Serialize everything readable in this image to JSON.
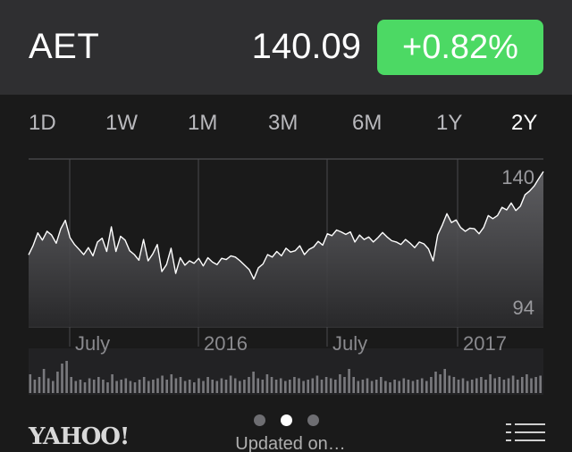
{
  "quote": {
    "symbol": "AET",
    "price": "140.09",
    "change": "+0.82%",
    "change_color": "#4cd964"
  },
  "ranges": {
    "tabs": [
      "1D",
      "1W",
      "1M",
      "3M",
      "6M",
      "1Y",
      "2Y"
    ],
    "selected": "2Y"
  },
  "footer": {
    "brand": "YAHOO!",
    "updated_text": "Updated on…",
    "page_count": 3,
    "active_page": 1,
    "list_icon": "list-icon"
  },
  "chart_data": {
    "type": "area",
    "title": "",
    "xlabel": "",
    "ylabel": "",
    "x_tick_labels": [
      "July",
      "2016",
      "July",
      "2017"
    ],
    "y_tick_labels": [
      "140",
      "94"
    ],
    "ylim": [
      94,
      140
    ],
    "grid": true,
    "series": [
      {
        "values": [
          113.5,
          116.5,
          120.5,
          118.2,
          121.0,
          119.8,
          117.2,
          121.8,
          124.5,
          119.0,
          116.8,
          115.2,
          113.6,
          115.8,
          113.2,
          117.6,
          118.8,
          114.6,
          122.4,
          114.6,
          119.4,
          118.2,
          114.8,
          113.6,
          111.8,
          118.4,
          111.6,
          113.8,
          116.8,
          108.2,
          110.4,
          115.6,
          107.6,
          112.6,
          110.2,
          111.6,
          110.8,
          112.4,
          110.0,
          112.6,
          111.2,
          110.4,
          112.4,
          112.0,
          113.2,
          112.8,
          111.6,
          110.2,
          108.8,
          105.8,
          109.4,
          110.6,
          113.6,
          112.8,
          114.6,
          113.2,
          115.6,
          114.4,
          114.8,
          116.4,
          113.6,
          115.2,
          116.0,
          117.8,
          116.6,
          120.2,
          119.6,
          121.4,
          120.8,
          120.0,
          120.8,
          117.6,
          119.8,
          118.4,
          119.2,
          117.6,
          119.0,
          120.6,
          119.2,
          118.0,
          117.6,
          116.8,
          118.4,
          117.2,
          115.8,
          117.6,
          117.0,
          115.4,
          111.6,
          119.8,
          123.0,
          126.6,
          123.8,
          124.6,
          122.2,
          121.0,
          122.0,
          121.8,
          120.2,
          122.2,
          126.0,
          125.0,
          126.0,
          128.6,
          127.8,
          130.0,
          127.6,
          129.0,
          132.6,
          133.8,
          135.4,
          137.8,
          140.0
        ],
        "color": "#ffffff"
      }
    ],
    "volume": [
      14,
      10,
      12,
      18,
      11,
      9,
      16,
      22,
      24,
      12,
      9,
      10,
      8,
      11,
      10,
      12,
      10,
      8,
      14,
      9,
      10,
      11,
      9,
      8,
      10,
      12,
      9,
      10,
      11,
      13,
      10,
      14,
      11,
      12,
      9,
      10,
      8,
      11,
      9,
      12,
      10,
      9,
      11,
      10,
      13,
      11,
      9,
      10,
      12,
      16,
      11,
      10,
      14,
      12,
      10,
      11,
      9,
      10,
      12,
      11,
      9,
      10,
      11,
      13,
      10,
      12,
      11,
      10,
      14,
      12,
      18,
      12,
      9,
      10,
      11,
      9,
      10,
      12,
      9,
      8,
      10,
      9,
      11,
      10,
      9,
      10,
      11,
      9,
      12,
      16,
      14,
      18,
      13,
      12,
      10,
      11,
      9,
      10,
      11,
      12,
      10,
      14,
      11,
      12,
      10,
      11,
      13,
      10,
      12,
      14,
      11,
      12,
      13
    ]
  }
}
